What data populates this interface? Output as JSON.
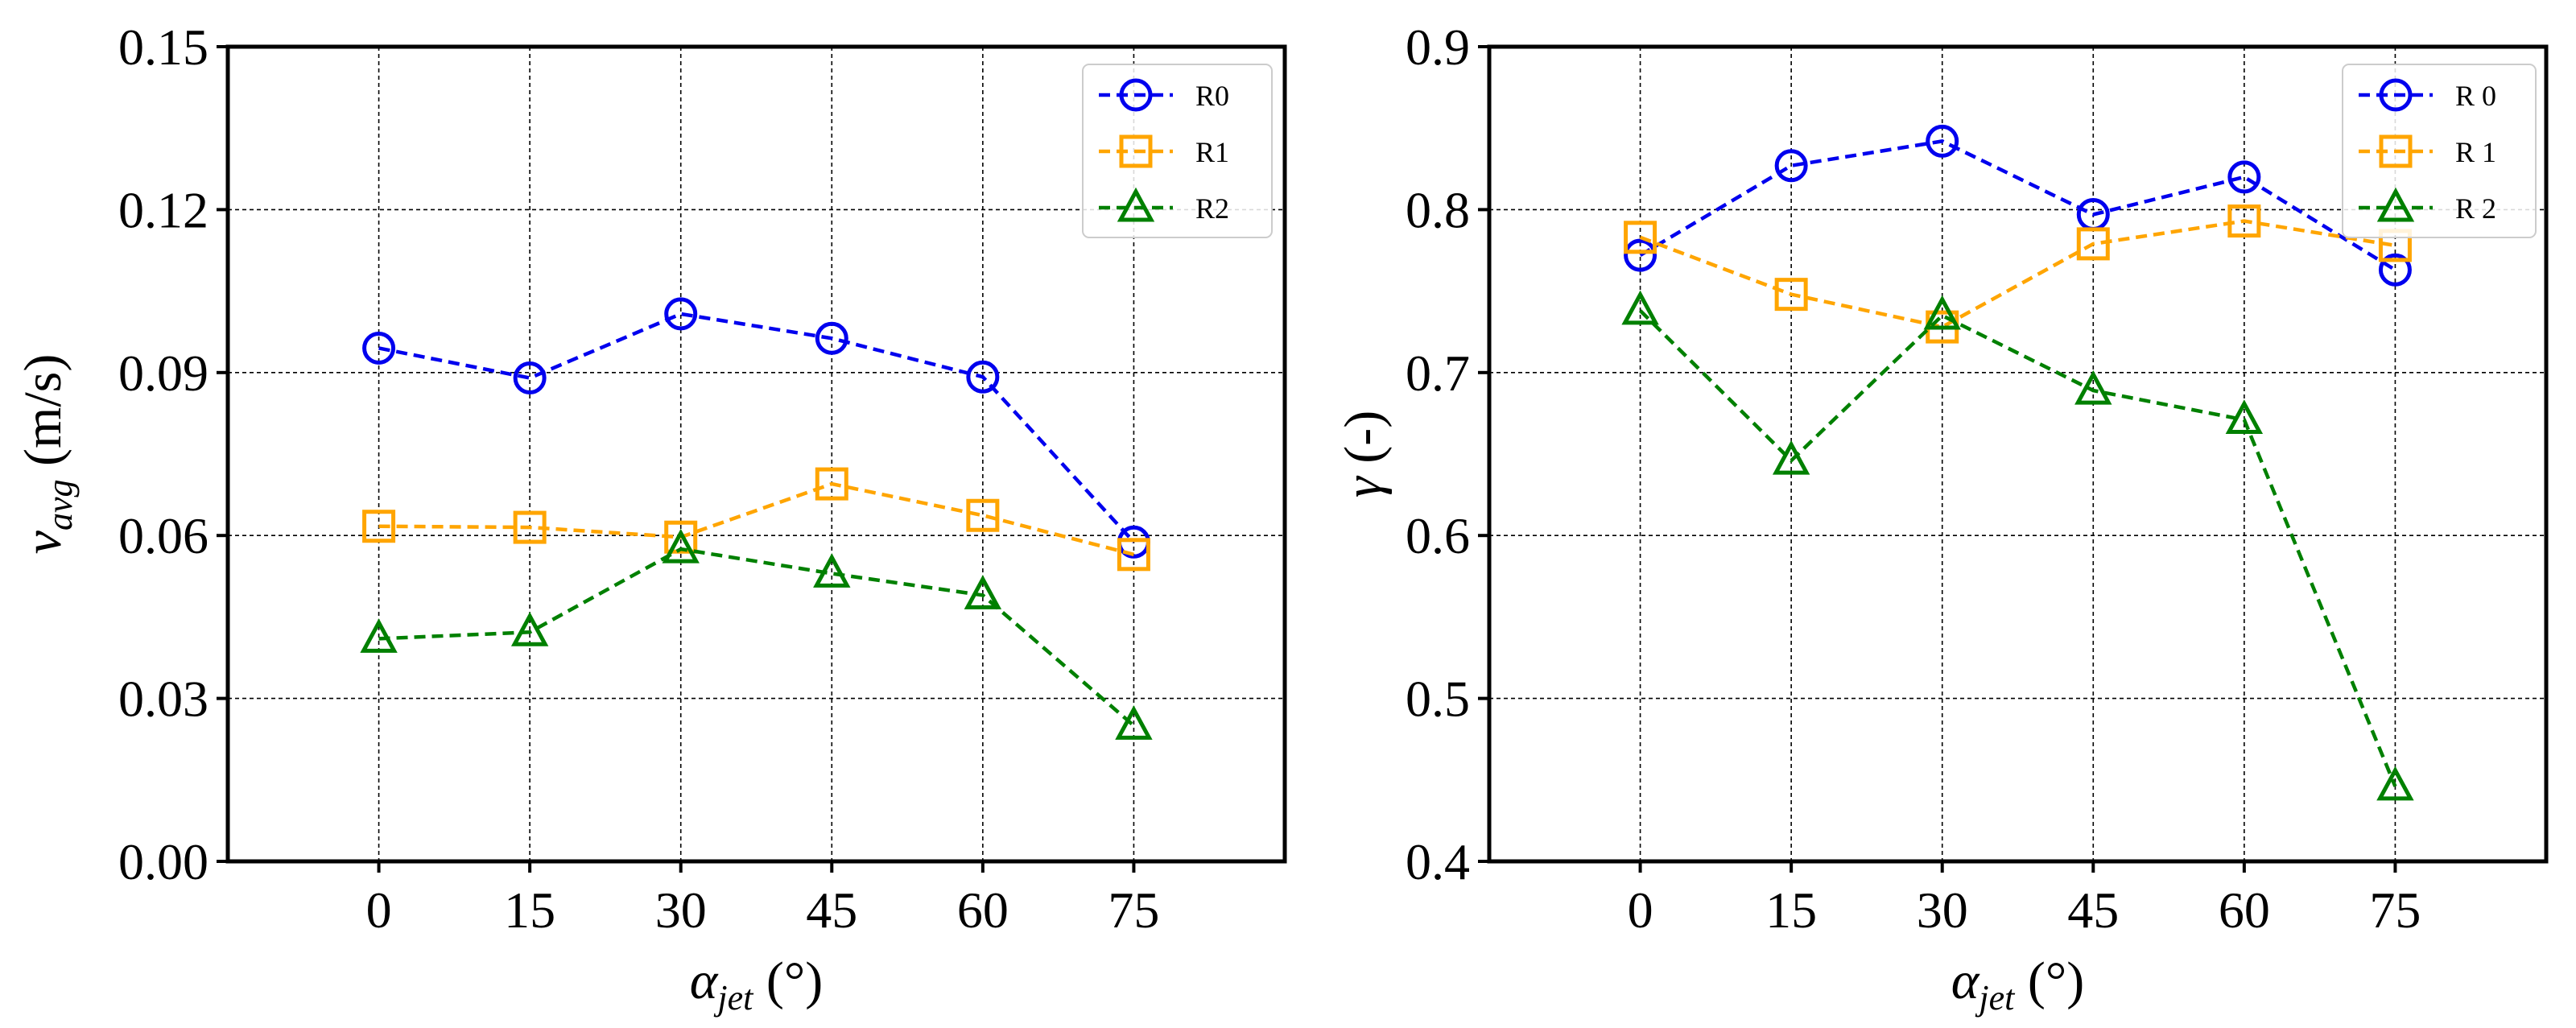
{
  "chart_data": [
    {
      "type": "line",
      "ylabel_main": "v",
      "ylabel_sub": "avg",
      "ylabel_unit": " (m/s)",
      "xlabel_main": "α",
      "xlabel_sub": "jet",
      "xlabel_unit": " (°)",
      "x": [
        0,
        15,
        30,
        45,
        60,
        75
      ],
      "xticks": [
        "0",
        "15",
        "30",
        "45",
        "60",
        "75"
      ],
      "xlim": [
        -15,
        90
      ],
      "ylim": [
        0,
        0.15
      ],
      "yticks": [
        0,
        0.03,
        0.06,
        0.09,
        0.12,
        0.15
      ],
      "ytick_labels": [
        "0.00",
        "0.03",
        "0.06",
        "0.09",
        "0.12",
        "0.15"
      ],
      "grid": true,
      "legend_position": "top-right",
      "series": [
        {
          "name": "R0",
          "color": "#0000ee",
          "marker": "circle",
          "values": [
            0.0945,
            0.089,
            0.1008,
            0.0963,
            0.0892,
            0.0588
          ]
        },
        {
          "name": "R1",
          "color": "#ffa500",
          "marker": "square",
          "values": [
            0.0617,
            0.0615,
            0.0597,
            0.0695,
            0.0637,
            0.0565
          ]
        },
        {
          "name": "R2",
          "color": "#008000",
          "marker": "triangle",
          "values": [
            0.041,
            0.0422,
            0.0575,
            0.053,
            0.049,
            0.025
          ]
        }
      ]
    },
    {
      "type": "line",
      "ylabel_main": "γ",
      "ylabel_sub": "",
      "ylabel_unit": " (-)",
      "xlabel_main": "α",
      "xlabel_sub": "jet",
      "xlabel_unit": " (°)",
      "x": [
        0,
        15,
        30,
        45,
        60,
        75
      ],
      "xticks": [
        "0",
        "15",
        "30",
        "45",
        "60",
        "75"
      ],
      "xlim": [
        -15,
        90
      ],
      "ylim": [
        0.4,
        0.9
      ],
      "yticks": [
        0.4,
        0.5,
        0.6,
        0.7,
        0.8,
        0.9
      ],
      "ytick_labels": [
        "0.4",
        "0.5",
        "0.6",
        "0.7",
        "0.8",
        "0.9"
      ],
      "grid": true,
      "legend_position": "top-right",
      "series": [
        {
          "name": "R 0",
          "color": "#0000ee",
          "marker": "circle",
          "values": [
            0.772,
            0.827,
            0.842,
            0.797,
            0.82,
            0.763
          ]
        },
        {
          "name": "R 1",
          "color": "#ffa500",
          "marker": "square",
          "values": [
            0.783,
            0.748,
            0.728,
            0.779,
            0.793,
            0.778
          ]
        },
        {
          "name": "R 2",
          "color": "#008000",
          "marker": "triangle",
          "values": [
            0.738,
            0.646,
            0.735,
            0.689,
            0.671,
            0.446
          ]
        }
      ]
    }
  ]
}
